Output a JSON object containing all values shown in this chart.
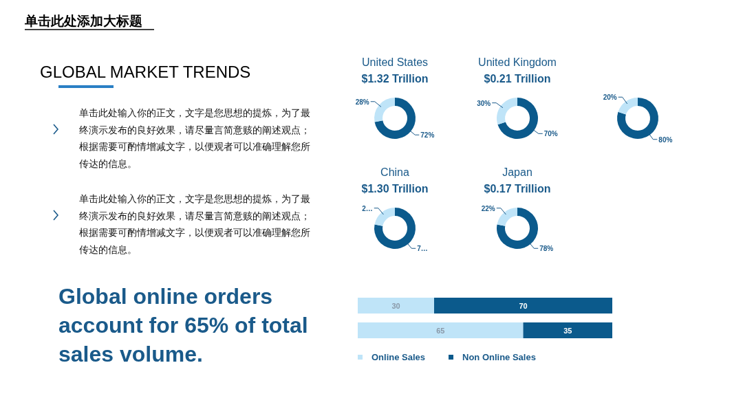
{
  "chart_data": [
    {
      "type": "other",
      "title": "单击此处添加大标题",
      "subtitle": "GLOBAL MARKET TRENDS",
      "annotations": [
        "单击此处输入你的正文，文字是您思想的提炼，为了最终演示发布的良好效果，请尽量言简意赅的阐述观点；根据需要可酌情增减文字，以便观者可以准确理解您所传达的信息。",
        "单击此处输入你的正文，文字是您思想的提炼，为了最终演示发布的良好效果，请尽量言简意赅的阐述观点；根据需要可酌情增减文字，以便观者可以准确理解您所传达的信息。",
        "Global online orders account for 65% of total sales volume."
      ]
    },
    {
      "type": "donut",
      "title": "United States",
      "subtitle": "$1.32 Trillion",
      "categories": [
        null,
        null
      ],
      "values": [
        72,
        28
      ],
      "colors": [
        "#0b5a8c",
        "#bfe4f8"
      ],
      "value_labels": [
        "72%",
        "28%"
      ]
    },
    {
      "type": "donut",
      "title": "United Kingdom",
      "subtitle": "$0.21 Trillion",
      "categories": [
        null,
        null
      ],
      "values": [
        70,
        30
      ],
      "colors": [
        "#0b5a8c",
        "#bfe4f8"
      ],
      "value_labels": [
        "70%",
        "30%"
      ]
    },
    {
      "type": "donut",
      "categories": [
        null,
        null
      ],
      "values": [
        80,
        20
      ],
      "colors": [
        "#0b5a8c",
        "#bfe4f8"
      ],
      "value_labels": [
        "80%",
        "20%"
      ]
    },
    {
      "type": "donut",
      "title": "China",
      "subtitle": "$1.30 Trillion",
      "categories": [
        null,
        null
      ],
      "values": [
        78,
        22
      ],
      "colors": [
        "#0b5a8c",
        "#bfe4f8"
      ],
      "value_labels": [
        "7…",
        "2…"
      ]
    },
    {
      "type": "donut",
      "title": "Japan",
      "subtitle": "$0.17 Trillion",
      "categories": [
        null,
        null
      ],
      "values": [
        78,
        22
      ],
      "colors": [
        "#0b5a8c",
        "#bfe4f8"
      ],
      "value_labels": [
        "78%",
        "22%"
      ]
    },
    {
      "type": "bar",
      "orientation": "horizontal",
      "stacked": true,
      "categories": [
        null,
        null
      ],
      "data_labels": true,
      "legend": "bottom",
      "series": [
        {
          "name": "Online Sales",
          "color": "#bfe4f8",
          "values": [
            30,
            65
          ]
        },
        {
          "name": "Non Online Sales",
          "color": "#0b5a8c",
          "values": [
            70,
            35
          ]
        }
      ]
    }
  ]
}
